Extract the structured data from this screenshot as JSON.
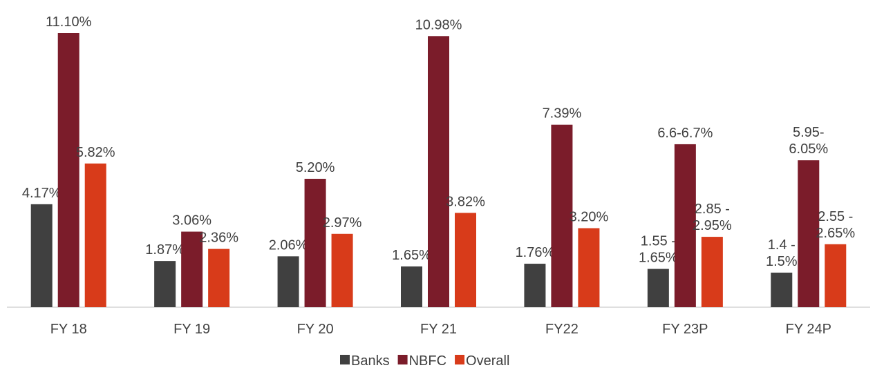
{
  "chart_data": {
    "type": "bar",
    "categories": [
      "FY 18",
      "FY 19",
      "FY 20",
      "FY 21",
      "FY22",
      "FY 23P",
      "FY 24P"
    ],
    "series": [
      {
        "name": "Banks",
        "color": "#404040",
        "values": [
          4.17,
          1.87,
          2.06,
          1.65,
          1.76,
          1.55,
          1.4
        ],
        "value_labels": [
          "4.17%",
          "1.87%",
          "2.06%",
          "1.65%",
          "1.76%",
          "1.55 -\n1.65%",
          "1.4 -\n1.5%"
        ]
      },
      {
        "name": "NBFC",
        "color": "#7b1c2a",
        "values": [
          11.1,
          3.06,
          5.2,
          10.98,
          7.39,
          6.6,
          5.95
        ],
        "value_labels": [
          "11.10%",
          "3.06%",
          "5.20%",
          "10.98%",
          "7.39%",
          "6.6-6.7%",
          "5.95-\n6.05%"
        ]
      },
      {
        "name": "Overall",
        "color": "#d83b1a",
        "values": [
          5.82,
          2.36,
          2.97,
          3.82,
          3.2,
          2.85,
          2.55
        ],
        "value_labels": [
          "5.82%",
          "2.36%",
          "2.97%",
          "3.82%",
          "3.20%",
          "2.85 -\n2.95%",
          "2.55 -\n2.65%"
        ]
      }
    ],
    "legend": "bottom"
  }
}
